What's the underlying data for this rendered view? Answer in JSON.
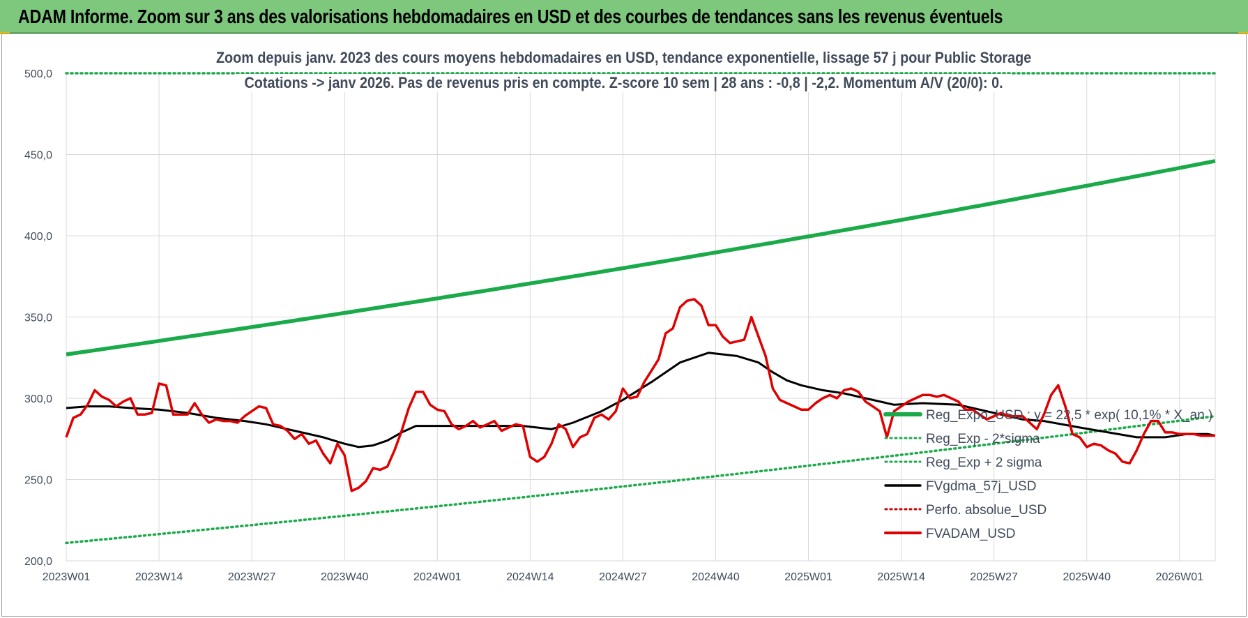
{
  "header": {
    "title": "ADAM Informe. Zoom sur 3 ans des valorisations hebdomadaires en USD et des courbes de tendances sans les revenus éventuels"
  },
  "colors": {
    "banner": "#7dc87d",
    "trend": "#1aaa4a",
    "band": "#1aaa4a",
    "smooth": "#000000",
    "perf": "#cc0000",
    "price": "#e00000",
    "grid": "#d9d9d9"
  },
  "chart_data": {
    "type": "line",
    "title_line1": "Zoom depuis janv. 2023 des cours moyens hebdomadaires en USD, tendance exponentielle, lissage 57 j pour Public Storage",
    "title_line2": "Cotations -> janv 2026. Pas de revenus pris en compte. Z-score 10 sem | 28 ans : -0,8 | -2,2. Momentum A/V (20/0): 0.",
    "ylim": [
      200,
      500
    ],
    "yticks": [
      "200,0",
      "250,0",
      "300,0",
      "350,0",
      "400,0",
      "450,0",
      "500,0"
    ],
    "xticks": [
      "2023W01",
      "2023W14",
      "2023W27",
      "2023W40",
      "2024W01",
      "2024W14",
      "2024W27",
      "2024W40",
      "2025W01",
      "2025W14",
      "2025W27",
      "2025W40",
      "2026W01"
    ],
    "x_start_label": "2023W01",
    "n_weeks": 162,
    "legend_position": "right",
    "legend": [
      {
        "name": "Reg_Expo_USD : y = 22,5 * exp( 10,1% * X_an )",
        "style": "thick-solid",
        "color": "#1aaa4a"
      },
      {
        "name": "Reg_Exp - 2*sigma",
        "style": "dotted",
        "color": "#1aaa4a"
      },
      {
        "name": "Reg_Exp + 2 sigma",
        "style": "dotted",
        "color": "#1aaa4a"
      },
      {
        "name": "FVgdma_57j_USD",
        "style": "solid",
        "color": "#000000"
      },
      {
        "name": "Perfo. absolue_USD",
        "style": "dotted",
        "color": "#cc0000"
      },
      {
        "name": "FVADAM_USD",
        "style": "solid-thick",
        "color": "#e00000"
      }
    ],
    "series": [
      {
        "name": "Reg_Expo_USD",
        "type": "exponential",
        "start": 327,
        "end": 446
      },
      {
        "name": "Reg_Exp - 2*sigma",
        "type": "exponential",
        "start": 211,
        "end": 289
      },
      {
        "name": "Reg_Exp + 2 sigma",
        "type": "constant",
        "value": 500
      },
      {
        "name": "FVgdma_57j_USD",
        "x": [
          0,
          3,
          6,
          9,
          13,
          17,
          21,
          25,
          28,
          32,
          36,
          39,
          41,
          43,
          45,
          47,
          49,
          52,
          56,
          60,
          64,
          68,
          71,
          75,
          78,
          82,
          86,
          90,
          94,
          97,
          99,
          101,
          103,
          106,
          109,
          112,
          116,
          120,
          125,
          128,
          131,
          134,
          137,
          142,
          146,
          150,
          154,
          157,
          160,
          161
        ],
        "values": [
          294,
          295,
          295,
          294,
          293,
          291,
          288,
          286,
          284,
          280,
          276,
          272,
          270,
          271,
          274,
          279,
          283,
          283,
          283,
          283,
          283,
          281,
          285,
          292,
          299,
          310,
          322,
          328,
          326,
          322,
          316,
          311,
          308,
          305,
          303,
          300,
          296,
          297,
          296,
          293,
          290,
          287,
          286,
          282,
          279,
          276,
          276,
          278,
          278,
          277
        ]
      },
      {
        "name": "FVADAM_USD",
        "x": [
          0,
          1,
          2,
          3,
          4,
          5,
          6,
          7,
          8,
          9,
          10,
          11,
          12,
          13,
          14,
          15,
          16,
          17,
          18,
          19,
          20,
          21,
          22,
          23,
          24,
          25,
          26,
          27,
          28,
          29,
          30,
          31,
          32,
          33,
          34,
          35,
          36,
          37,
          38,
          39,
          40,
          41,
          42,
          43,
          44,
          45,
          46,
          47,
          48,
          49,
          50,
          51,
          52,
          53,
          54,
          55,
          56,
          57,
          58,
          59,
          60,
          61,
          62,
          63,
          64,
          65,
          66,
          67,
          68,
          69,
          70,
          71,
          72,
          73,
          74,
          75,
          76,
          77,
          78,
          79,
          80,
          81,
          82,
          83,
          84,
          85,
          86,
          87,
          88,
          89,
          90,
          91,
          92,
          93,
          94,
          95,
          96,
          97,
          98,
          99,
          100,
          101,
          102,
          103,
          104,
          105,
          106,
          107,
          108,
          109,
          110,
          111,
          112,
          113,
          114,
          115,
          116,
          117,
          118,
          119,
          120,
          121,
          122,
          123,
          124,
          125,
          126,
          127,
          128,
          129,
          130,
          131,
          132,
          133,
          134,
          135,
          136,
          137,
          138,
          139,
          140,
          141,
          142,
          143,
          144,
          145,
          146,
          147,
          148,
          149,
          150,
          151,
          152,
          153,
          154,
          155,
          156,
          157,
          158,
          159,
          160,
          161
        ],
        "values": [
          276,
          288,
          290,
          296,
          305,
          301,
          299,
          295,
          298,
          300,
          290,
          290,
          291,
          309,
          308,
          290,
          290,
          290,
          297,
          290,
          285,
          287,
          286,
          286,
          285,
          289,
          292,
          295,
          294,
          284,
          283,
          280,
          275,
          278,
          272,
          274,
          266,
          260,
          272,
          265,
          243,
          245,
          249,
          257,
          256,
          258,
          268,
          280,
          294,
          304,
          304,
          296,
          293,
          292,
          284,
          281,
          283,
          286,
          282,
          284,
          286,
          280,
          282,
          284,
          283,
          264,
          261,
          264,
          272,
          284,
          281,
          270,
          276,
          278,
          288,
          290,
          287,
          292,
          306,
          300,
          301,
          310,
          317,
          324,
          340,
          343,
          356,
          360,
          361,
          357,
          345,
          345,
          338,
          334,
          335,
          336,
          350,
          338,
          326,
          306,
          299,
          297,
          295,
          293,
          293,
          297,
          300,
          302,
          300,
          305,
          306,
          304,
          298,
          295,
          292,
          276,
          292,
          295,
          298,
          300,
          302,
          302,
          301,
          302,
          300,
          298,
          293,
          293,
          290,
          287,
          289,
          291,
          289,
          289,
          289,
          285,
          281,
          290,
          302,
          308,
          295,
          278,
          276,
          270,
          272,
          271,
          268,
          266,
          261,
          260,
          268,
          278,
          286,
          286,
          279,
          279,
          278,
          278,
          278,
          277,
          277,
          277
        ]
      }
    ]
  }
}
